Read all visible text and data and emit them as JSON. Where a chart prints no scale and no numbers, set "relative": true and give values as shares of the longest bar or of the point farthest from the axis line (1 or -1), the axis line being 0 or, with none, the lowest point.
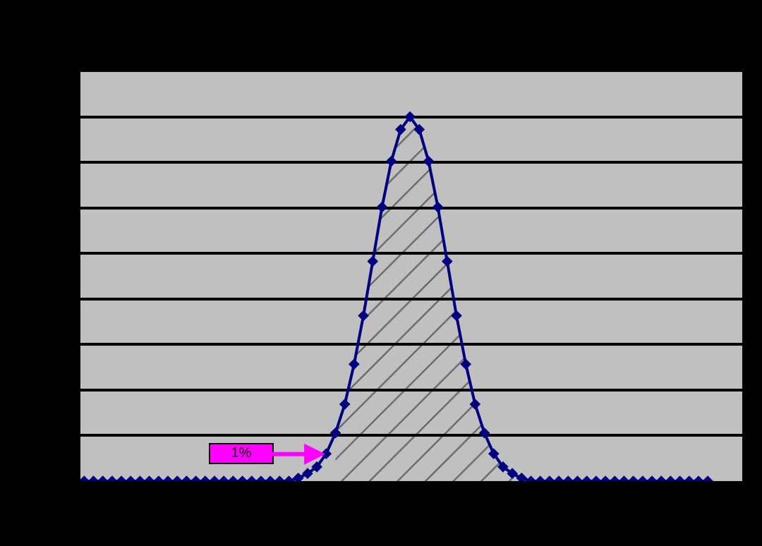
{
  "chart_data": {
    "type": "line",
    "relative": true,
    "categories": [
      null,
      null,
      null,
      null,
      null,
      null,
      null,
      null,
      null,
      null,
      null,
      null,
      null,
      null,
      null,
      null,
      null,
      null,
      null,
      null,
      null,
      null,
      null,
      null,
      null,
      null,
      null,
      null,
      null,
      null,
      null,
      null,
      null,
      null,
      null,
      null,
      null,
      null,
      null,
      null,
      null,
      null,
      null,
      null,
      null,
      null,
      null,
      null,
      null,
      null,
      null,
      null,
      null,
      null,
      null,
      null,
      null,
      null,
      null,
      null,
      null,
      null,
      null,
      null,
      null,
      null,
      null,
      null
    ],
    "series": [
      {
        "color": "#000080",
        "marker": "diamond",
        "values": [
          0,
          0,
          0,
          0,
          0,
          0,
          0,
          0,
          0,
          0,
          0,
          0,
          0,
          0,
          0,
          0,
          0,
          0,
          0,
          0,
          0,
          0,
          0,
          0.008,
          0.021,
          0.039,
          0.075,
          0.132,
          0.211,
          0.321,
          0.454,
          0.603,
          0.752,
          0.878,
          0.965,
          1,
          0.965,
          0.878,
          0.752,
          0.603,
          0.454,
          0.321,
          0.211,
          0.132,
          0.075,
          0.039,
          0.021,
          0.008,
          0,
          0,
          0,
          0,
          0,
          0,
          0,
          0,
          0,
          0,
          0,
          0,
          0,
          0,
          0,
          0,
          0,
          0,
          0,
          0
        ]
      },
      {
        "type": "area",
        "color": "#000000",
        "values": [
          null,
          null,
          null,
          null,
          null,
          null,
          null,
          null,
          null,
          null,
          null,
          null,
          null,
          null,
          null,
          null,
          null,
          null,
          null,
          null,
          null,
          null,
          null,
          null,
          null,
          null,
          null,
          0.132,
          0.211,
          0.321,
          0.454,
          0.603,
          0.752,
          0.878,
          0.965,
          1,
          0.965,
          0.878,
          0.752,
          0.603,
          0.454,
          0.321,
          0.211,
          0.132,
          0.075,
          0.039,
          0.021,
          null,
          null,
          null,
          null,
          null,
          null,
          null,
          null,
          null,
          null,
          null,
          null,
          null,
          null,
          null,
          null,
          null,
          null,
          null,
          null,
          null
        ]
      }
    ],
    "grid": "y",
    "annotations": [
      "1%"
    ]
  }
}
